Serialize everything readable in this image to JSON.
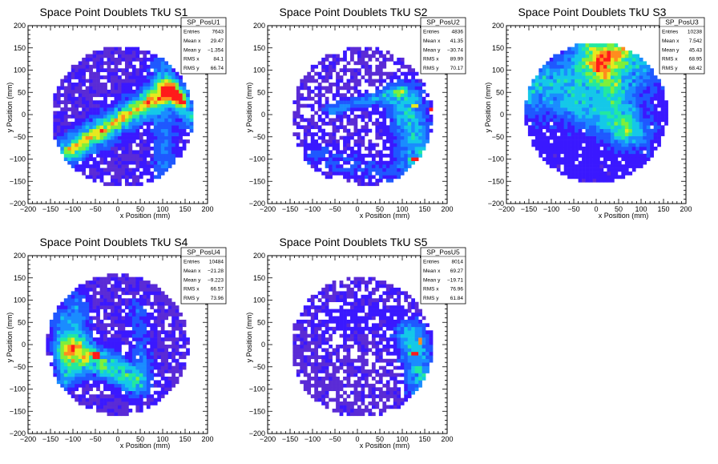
{
  "colors": {
    "background": "#ffffff",
    "frame": "#000000",
    "palette": [
      "#5a2bd6",
      "#3a18ff",
      "#1f58ff",
      "#1a8cff",
      "#14c8e8",
      "#22e8a0",
      "#7fef3a",
      "#e8e81e",
      "#ff8c1e",
      "#ff1a1a"
    ]
  },
  "chart_data": [
    {
      "type": "heatmap",
      "title": "Space Point Doublets TkU S1",
      "xlabel": "x Position (mm)",
      "ylabel": "y Position (mm)",
      "xlim": [
        -200,
        200
      ],
      "ylim": [
        -200,
        200
      ],
      "x_ticks": [
        "−200",
        "−150",
        "−100",
        "−50",
        "0",
        "50",
        "100",
        "150",
        "200"
      ],
      "y_ticks": [
        "−200",
        "−150",
        "−100",
        "−50",
        "0",
        "50",
        "100",
        "150",
        "200"
      ],
      "grid": false,
      "legend_position": "top-right",
      "stats": {
        "name": "SP_PosU1",
        "rows": [
          {
            "label": "Entries",
            "value": "7643"
          },
          {
            "label": "Mean x",
            "value": "29.47"
          },
          {
            "label": "Mean y",
            "value": "−1.354"
          },
          {
            "label": "RMS x",
            "value": "84.1"
          },
          {
            "label": "RMS y",
            "value": "66.74"
          }
        ]
      },
      "disk": {
        "center": [
          10,
          -5
        ],
        "radius": 158
      },
      "bands": [
        {
          "from": [
            -105,
            -80
          ],
          "to": [
            110,
            55
          ],
          "width": 22,
          "peak": 0.6
        },
        {
          "from": [
            -105,
            -80
          ],
          "to": [
            110,
            55
          ],
          "width": 8,
          "peak": 0.25
        },
        {
          "from": [
            100,
            110
          ],
          "to": [
            105,
            -140
          ],
          "width": 20,
          "peak": 0.25
        },
        {
          "from": [
            140,
            40
          ],
          "to": [
            165,
            -20
          ],
          "width": 14,
          "peak": 0.4
        },
        {
          "from": [
            120,
            60
          ],
          "to": [
            140,
            30
          ],
          "width": 10,
          "peak": 0.5
        }
      ],
      "hot": [
        {
          "x": 105,
          "y": 45,
          "level": 9
        },
        {
          "x": 115,
          "y": 40,
          "level": 8
        }
      ],
      "base": 0.05,
      "empty_fraction": 0.15,
      "seed": 11
    },
    {
      "type": "heatmap",
      "title": "Space Point Doublets TkU S2",
      "xlabel": "x Position (mm)",
      "ylabel": "y Position (mm)",
      "xlim": [
        -200,
        200
      ],
      "ylim": [
        -200,
        200
      ],
      "x_ticks": [
        "−200",
        "−150",
        "−100",
        "−50",
        "0",
        "50",
        "100",
        "150",
        "200"
      ],
      "y_ticks": [
        "−200",
        "−150",
        "−100",
        "−50",
        "0",
        "50",
        "100",
        "150",
        "200"
      ],
      "grid": false,
      "legend_position": "top-right",
      "stats": {
        "name": "SP_PosU2",
        "rows": [
          {
            "label": "Entries",
            "value": "4836"
          },
          {
            "label": "Mean x",
            "value": "41.35"
          },
          {
            "label": "Mean y",
            "value": "−30.74"
          },
          {
            "label": "RMS x",
            "value": "89.99"
          },
          {
            "label": "RMS y",
            "value": "70.17"
          }
        ]
      },
      "disk": {
        "center": [
          10,
          -5
        ],
        "radius": 158
      },
      "bands": [
        {
          "from": [
            -60,
            10
          ],
          "to": [
            100,
            55
          ],
          "width": 10,
          "peak": 0.3
        },
        {
          "from": [
            105,
            30
          ],
          "to": [
            140,
            -110
          ],
          "width": 30,
          "peak": 0.45
        },
        {
          "from": [
            -100,
            -90
          ],
          "to": [
            80,
            -130
          ],
          "width": 25,
          "peak": 0.15
        }
      ],
      "hot": [
        {
          "x": 165,
          "y": 10,
          "level": 9
        },
        {
          "x": 125,
          "y": -100,
          "level": 9
        },
        {
          "x": 130,
          "y": 20,
          "level": 7
        }
      ],
      "base": 0.04,
      "empty_fraction": 0.32,
      "seed": 23
    },
    {
      "type": "heatmap",
      "title": "Space Point Doublets TkU S3",
      "xlabel": "x Position (mm)",
      "ylabel": "y Position (mm)",
      "xlim": [
        -200,
        200
      ],
      "ylim": [
        -200,
        200
      ],
      "x_ticks": [
        "−200",
        "−150",
        "−100",
        "−50",
        "0",
        "50",
        "100",
        "150",
        "200"
      ],
      "y_ticks": [
        "−200",
        "−150",
        "−100",
        "−50",
        "0",
        "50",
        "100",
        "150",
        "200"
      ],
      "grid": false,
      "legend_position": "top-right",
      "stats": {
        "name": "SP_PosU3",
        "rows": [
          {
            "label": "Entries",
            "value": "10238"
          },
          {
            "label": "Mean x",
            "value": "7.542"
          },
          {
            "label": "Mean y",
            "value": "45.43"
          },
          {
            "label": "RMS x",
            "value": "68.95"
          },
          {
            "label": "RMS y",
            "value": "68.42"
          }
        ]
      },
      "disk": {
        "center": [
          0,
          5
        ],
        "radius": 158
      },
      "bands": [
        {
          "from": [
            -150,
            60
          ],
          "to": [
            80,
            110
          ],
          "width": 40,
          "peak": 0.35
        },
        {
          "from": [
            -20,
            150
          ],
          "to": [
            80,
            -40
          ],
          "width": 25,
          "peak": 0.35
        },
        {
          "from": [
            20,
            130
          ],
          "to": [
            60,
            150
          ],
          "width": 20,
          "peak": 0.5
        },
        {
          "from": [
            -50,
            20
          ],
          "to": [
            50,
            -30
          ],
          "width": 25,
          "peak": 0.3
        }
      ],
      "hot": [
        {
          "x": 55,
          "y": 115,
          "level": 6
        }
      ],
      "base": 0.12,
      "empty_fraction": 0.12,
      "seed": 37
    },
    {
      "type": "heatmap",
      "title": "Space Point Doublets TkU S4",
      "xlabel": "x Position (mm)",
      "ylabel": "y Position (mm)",
      "xlim": [
        -200,
        200
      ],
      "ylim": [
        -200,
        200
      ],
      "x_ticks": [
        "−200",
        "−150",
        "−100",
        "−50",
        "0",
        "50",
        "100",
        "150",
        "200"
      ],
      "y_ticks": [
        "−200",
        "−150",
        "−100",
        "−50",
        "0",
        "50",
        "100",
        "150",
        "200"
      ],
      "grid": false,
      "legend_position": "top-right",
      "stats": {
        "name": "SP_PosU4",
        "rows": [
          {
            "label": "Entries",
            "value": "10484"
          },
          {
            "label": "Mean x",
            "value": "−21.28"
          },
          {
            "label": "Mean y",
            "value": "−9.223"
          },
          {
            "label": "RMS x",
            "value": "66.57"
          },
          {
            "label": "RMS y",
            "value": "73.96"
          }
        ]
      },
      "disk": {
        "center": [
          0,
          0
        ],
        "radius": 158
      },
      "bands": [
        {
          "from": [
            -100,
            -10
          ],
          "to": [
            40,
            -80
          ],
          "width": 22,
          "peak": 0.6
        },
        {
          "from": [
            -90,
            90
          ],
          "to": [
            -100,
            -60
          ],
          "width": 20,
          "peak": 0.3
        },
        {
          "from": [
            -130,
            60
          ],
          "to": [
            -120,
            -80
          ],
          "width": 15,
          "peak": 0.25
        },
        {
          "from": [
            40,
            80
          ],
          "to": [
            60,
            -40
          ],
          "width": 15,
          "peak": 0.2
        }
      ],
      "hot": [
        {
          "x": -45,
          "y": -25,
          "level": 9
        },
        {
          "x": -55,
          "y": -20,
          "level": 8
        }
      ],
      "base": 0.05,
      "empty_fraction": 0.18,
      "seed": 53
    },
    {
      "type": "heatmap",
      "title": "Space Point Doublets TkU S5",
      "xlabel": "x Position (mm)",
      "ylabel": "y Position (mm)",
      "xlim": [
        -200,
        200
      ],
      "ylim": [
        -200,
        200
      ],
      "x_ticks": [
        "−200",
        "−150",
        "−100",
        "−50",
        "0",
        "50",
        "100",
        "150",
        "200"
      ],
      "y_ticks": [
        "−200",
        "−150",
        "−100",
        "−50",
        "0",
        "50",
        "100",
        "150",
        "200"
      ],
      "grid": false,
      "legend_position": "top-right",
      "stats": {
        "name": "SP_PosU5",
        "rows": [
          {
            "label": "Entries",
            "value": "8014"
          },
          {
            "label": "Mean x",
            "value": "69.27"
          },
          {
            "label": "Mean y",
            "value": "−19.71"
          },
          {
            "label": "RMS x",
            "value": "76.96"
          },
          {
            "label": "RMS y",
            "value": "61.84"
          }
        ]
      },
      "disk": {
        "center": [
          10,
          -5
        ],
        "radius": 158
      },
      "bands": [
        {
          "from": [
            120,
            20
          ],
          "to": [
            150,
            -100
          ],
          "width": 25,
          "peak": 0.45
        },
        {
          "from": [
            -60,
            60
          ],
          "to": [
            60,
            60
          ],
          "width": 40,
          "peak": 0.08
        }
      ],
      "hot": [
        {
          "x": 130,
          "y": -20,
          "level": 9
        },
        {
          "x": 140,
          "y": 10,
          "level": 8
        }
      ],
      "base": 0.03,
      "empty_fraction": 0.3,
      "seed": 71
    }
  ]
}
